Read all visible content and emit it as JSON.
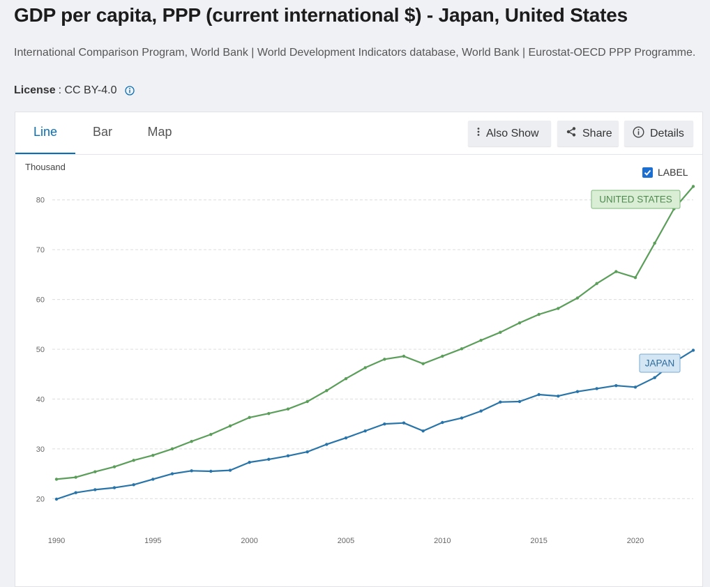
{
  "page": {
    "title": "GDP per capita, PPP (current international $) - Japan, United States",
    "source": "International Comparison Program, World Bank | World Development Indicators database, World Bank | Eurostat-OECD PPP Programme.",
    "license_label": "License",
    "license_value": ": CC BY-4.0"
  },
  "tabs": [
    {
      "label": "Line",
      "active": true
    },
    {
      "label": "Bar",
      "active": false
    },
    {
      "label": "Map",
      "active": false
    }
  ],
  "actions": {
    "also_show": "Also Show",
    "share": "Share",
    "details": "Details"
  },
  "label_toggle": {
    "text": "LABEL",
    "checked": true
  },
  "colors": {
    "united_states": "#5b9e5a",
    "japan": "#2874a8",
    "us_label_bg": "#daeed6",
    "us_label_border": "#7cb87a",
    "jp_label_bg": "#d4e6f4",
    "jp_label_border": "#7aa9cf",
    "accent": "#0a6eb4"
  },
  "chart_data": {
    "type": "line",
    "unit_label": "Thousand",
    "x": [
      1990,
      1991,
      1992,
      1993,
      1994,
      1995,
      1996,
      1997,
      1998,
      1999,
      2000,
      2001,
      2002,
      2003,
      2004,
      2005,
      2006,
      2007,
      2008,
      2009,
      2010,
      2011,
      2012,
      2013,
      2014,
      2015,
      2016,
      2017,
      2018,
      2019,
      2020,
      2021,
      2022,
      2023
    ],
    "x_ticks": [
      1990,
      1995,
      2000,
      2005,
      2010,
      2015,
      2020
    ],
    "y_ticks": [
      20,
      30,
      40,
      50,
      60,
      70,
      80
    ],
    "xlim": [
      1990,
      2023
    ],
    "ylim": [
      15,
      85
    ],
    "grid": true,
    "series": [
      {
        "name": "United States",
        "label": "UNITED STATES",
        "color_key": "united_states",
        "values": [
          23.9,
          24.3,
          25.4,
          26.4,
          27.7,
          28.7,
          30.0,
          31.5,
          32.9,
          34.6,
          36.3,
          37.1,
          38.0,
          39.5,
          41.7,
          44.1,
          46.3,
          48.0,
          48.6,
          47.1,
          48.6,
          50.1,
          51.8,
          53.4,
          55.3,
          57.0,
          58.2,
          60.3,
          63.2,
          65.6,
          64.4,
          71.3,
          78.2,
          82.7
        ]
      },
      {
        "name": "Japan",
        "label": "JAPAN",
        "color_key": "japan",
        "values": [
          19.9,
          21.2,
          21.8,
          22.2,
          22.8,
          23.9,
          25.0,
          25.6,
          25.5,
          25.7,
          27.3,
          27.9,
          28.6,
          29.4,
          30.9,
          32.2,
          33.6,
          35.0,
          35.2,
          33.6,
          35.3,
          36.2,
          37.6,
          39.4,
          39.5,
          40.9,
          40.6,
          41.5,
          42.1,
          42.7,
          42.4,
          44.3,
          47.4,
          49.8
        ]
      }
    ]
  }
}
